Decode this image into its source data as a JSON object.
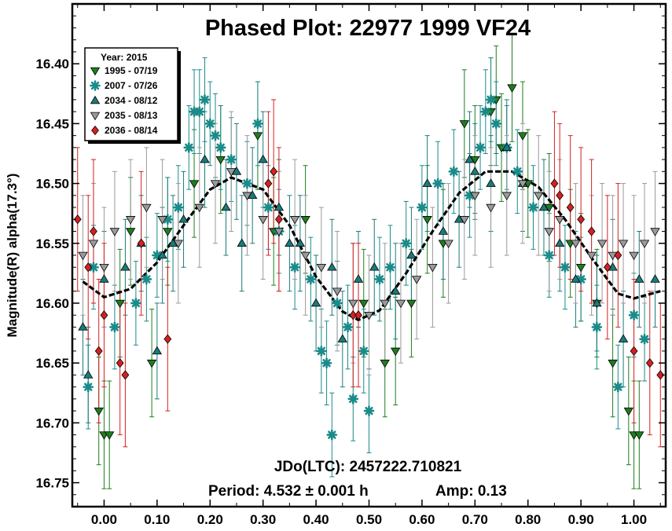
{
  "chart_data": {
    "type": "scatter",
    "title": "Phased Plot: 22977 1999 VF24",
    "xlabel": "",
    "ylabel": "Magnitude(R) alpha(17.3°)",
    "xlim": [
      -0.06,
      1.06
    ],
    "ylim": [
      16.77,
      16.35
    ],
    "y_inverted": true,
    "x_ticks": [
      "0.00",
      "0.10",
      "0.20",
      "0.30",
      "0.40",
      "0.50",
      "0.60",
      "0.70",
      "0.80",
      "0.90",
      "1.00"
    ],
    "x_tick_values": [
      0.0,
      0.1,
      0.2,
      0.3,
      0.4,
      0.5,
      0.6,
      0.7,
      0.8,
      0.9,
      1.0
    ],
    "y_ticks": [
      "16.40",
      "16.45",
      "16.50",
      "16.55",
      "16.60",
      "16.65",
      "16.70",
      "16.75"
    ],
    "y_tick_values": [
      16.4,
      16.45,
      16.5,
      16.55,
      16.6,
      16.65,
      16.7,
      16.75
    ],
    "legend": {
      "title": "Year: 2015",
      "position": "top-left",
      "entries": [
        {
          "label": "1995 - 07/19",
          "marker": "triangle-down",
          "color": "#1e7d1e"
        },
        {
          "label": "2007 - 07/26",
          "marker": "asterisk",
          "color": "#1b8a8a"
        },
        {
          "label": "2034 - 08/12",
          "marker": "triangle-up",
          "color": "#1b7a7a"
        },
        {
          "label": "2035 - 08/13",
          "marker": "triangle-down",
          "color": "#9a9a9a"
        },
        {
          "label": "2036 - 08/14",
          "marker": "diamond",
          "color": "#d62020"
        }
      ]
    },
    "fit_curve": {
      "style": "dashed",
      "color": "#000000",
      "points": [
        [
          -0.04,
          16.582
        ],
        [
          0.0,
          16.595
        ],
        [
          0.05,
          16.588
        ],
        [
          0.1,
          16.566
        ],
        [
          0.15,
          16.535
        ],
        [
          0.2,
          16.505
        ],
        [
          0.24,
          16.495
        ],
        [
          0.3,
          16.505
        ],
        [
          0.35,
          16.535
        ],
        [
          0.4,
          16.578
        ],
        [
          0.45,
          16.607
        ],
        [
          0.48,
          16.614
        ],
        [
          0.52,
          16.606
        ],
        [
          0.57,
          16.575
        ],
        [
          0.62,
          16.54
        ],
        [
          0.67,
          16.508
        ],
        [
          0.72,
          16.49
        ],
        [
          0.77,
          16.49
        ],
        [
          0.82,
          16.503
        ],
        [
          0.87,
          16.53
        ],
        [
          0.92,
          16.562
        ],
        [
          0.97,
          16.592
        ],
        [
          1.0,
          16.596
        ],
        [
          1.05,
          16.59
        ]
      ]
    },
    "series": [
      {
        "name": "1995 - 07/19",
        "points": [
          [
            -0.01,
            16.69
          ],
          [
            0.0,
            16.71
          ],
          [
            0.01,
            16.71
          ],
          [
            0.03,
            16.6
          ],
          [
            0.05,
            16.54
          ],
          [
            0.09,
            16.65
          ],
          [
            0.12,
            16.54
          ],
          [
            0.17,
            16.5
          ],
          [
            0.22,
            16.48
          ],
          [
            0.29,
            16.46
          ],
          [
            0.32,
            16.54
          ],
          [
            0.38,
            16.53
          ],
          [
            0.49,
            16.6
          ],
          [
            0.53,
            16.65
          ],
          [
            0.55,
            16.64
          ],
          [
            0.58,
            16.6
          ],
          [
            0.61,
            16.53
          ],
          [
            0.64,
            16.55
          ],
          [
            0.68,
            16.45
          ],
          [
            0.7,
            16.48
          ],
          [
            0.73,
            16.44
          ],
          [
            0.74,
            16.43
          ],
          [
            0.75,
            16.47
          ],
          [
            0.77,
            16.42
          ],
          [
            0.79,
            16.46
          ],
          [
            0.8,
            16.5
          ],
          [
            0.84,
            16.52
          ],
          [
            0.88,
            16.55
          ],
          [
            0.9,
            16.57
          ],
          [
            0.93,
            16.6
          ],
          [
            0.96,
            16.65
          ],
          [
            0.99,
            16.69
          ],
          [
            1.0,
            16.71
          ],
          [
            1.01,
            16.71
          ]
        ]
      },
      {
        "name": "2007 - 07/26",
        "points": [
          [
            -0.03,
            16.67
          ],
          [
            -0.02,
            16.57
          ],
          [
            0.02,
            16.62
          ],
          [
            0.06,
            16.6
          ],
          [
            0.08,
            16.58
          ],
          [
            0.1,
            16.56
          ],
          [
            0.12,
            16.53
          ],
          [
            0.14,
            16.52
          ],
          [
            0.16,
            16.47
          ],
          [
            0.17,
            16.44
          ],
          [
            0.18,
            16.44
          ],
          [
            0.19,
            16.43
          ],
          [
            0.2,
            16.45
          ],
          [
            0.21,
            16.46
          ],
          [
            0.22,
            16.47
          ],
          [
            0.24,
            16.48
          ],
          [
            0.27,
            16.5
          ],
          [
            0.29,
            16.45
          ],
          [
            0.31,
            16.52
          ],
          [
            0.33,
            16.54
          ],
          [
            0.36,
            16.57
          ],
          [
            0.39,
            16.58
          ],
          [
            0.41,
            16.64
          ],
          [
            0.42,
            16.65
          ],
          [
            0.43,
            16.71
          ],
          [
            0.44,
            16.6
          ],
          [
            0.46,
            16.62
          ],
          [
            0.47,
            16.68
          ],
          [
            0.49,
            16.64
          ],
          [
            0.5,
            16.69
          ],
          [
            0.52,
            16.58
          ],
          [
            0.54,
            16.57
          ],
          [
            0.57,
            16.55
          ],
          [
            0.6,
            16.52
          ],
          [
            0.63,
            16.5
          ],
          [
            0.66,
            16.49
          ],
          [
            0.69,
            16.51
          ],
          [
            0.71,
            16.47
          ],
          [
            0.72,
            16.44
          ],
          [
            0.73,
            16.43
          ],
          [
            0.74,
            16.45
          ],
          [
            0.76,
            16.47
          ],
          [
            0.78,
            16.49
          ],
          [
            0.81,
            16.52
          ],
          [
            0.84,
            16.56
          ],
          [
            0.87,
            16.57
          ],
          [
            0.9,
            16.58
          ],
          [
            0.93,
            16.62
          ],
          [
            0.97,
            16.67
          ],
          [
            1.0,
            16.61
          ],
          [
            1.02,
            16.63
          ]
        ]
      },
      {
        "name": "2034 - 08/12",
        "points": [
          [
            -0.04,
            16.62
          ],
          [
            -0.03,
            16.66
          ],
          [
            0.0,
            16.58
          ],
          [
            0.04,
            16.57
          ],
          [
            0.07,
            16.55
          ],
          [
            0.1,
            16.64
          ],
          [
            0.11,
            16.56
          ],
          [
            0.13,
            16.55
          ],
          [
            0.15,
            16.53
          ],
          [
            0.19,
            16.48
          ],
          [
            0.23,
            16.52
          ],
          [
            0.25,
            16.49
          ],
          [
            0.26,
            16.55
          ],
          [
            0.28,
            16.51
          ],
          [
            0.3,
            16.48
          ],
          [
            0.33,
            16.52
          ],
          [
            0.35,
            16.55
          ],
          [
            0.37,
            16.55
          ],
          [
            0.4,
            16.6
          ],
          [
            0.43,
            16.57
          ],
          [
            0.45,
            16.63
          ],
          [
            0.48,
            16.58
          ],
          [
            0.51,
            16.57
          ],
          [
            0.55,
            16.59
          ],
          [
            0.58,
            16.56
          ],
          [
            0.61,
            16.5
          ],
          [
            0.64,
            16.54
          ],
          [
            0.67,
            16.53
          ],
          [
            0.69,
            16.48
          ],
          [
            0.7,
            16.49
          ],
          [
            0.73,
            16.5
          ],
          [
            0.76,
            16.47
          ],
          [
            0.79,
            16.5
          ],
          [
            0.83,
            16.52
          ],
          [
            0.86,
            16.55
          ],
          [
            0.89,
            16.58
          ],
          [
            0.93,
            16.6
          ],
          [
            0.96,
            16.57
          ],
          [
            0.98,
            16.63
          ],
          [
            1.01,
            16.58
          ],
          [
            1.04,
            16.58
          ]
        ]
      },
      {
        "name": "2035 - 08/13",
        "points": [
          [
            -0.04,
            16.56
          ],
          [
            -0.02,
            16.55
          ],
          [
            0.0,
            16.57
          ],
          [
            0.02,
            16.54
          ],
          [
            0.05,
            16.53
          ],
          [
            0.08,
            16.52
          ],
          [
            0.11,
            16.53
          ],
          [
            0.14,
            16.55
          ],
          [
            0.18,
            16.52
          ],
          [
            0.21,
            16.5
          ],
          [
            0.24,
            16.49
          ],
          [
            0.27,
            16.51
          ],
          [
            0.3,
            16.53
          ],
          [
            0.33,
            16.54
          ],
          [
            0.36,
            16.53
          ],
          [
            0.38,
            16.56
          ],
          [
            0.41,
            16.57
          ],
          [
            0.44,
            16.59
          ],
          [
            0.47,
            16.6
          ],
          [
            0.5,
            16.61
          ],
          [
            0.53,
            16.6
          ],
          [
            0.56,
            16.6
          ],
          [
            0.59,
            16.58
          ],
          [
            0.62,
            16.57
          ],
          [
            0.65,
            16.55
          ],
          [
            0.68,
            16.53
          ],
          [
            0.7,
            16.51
          ],
          [
            0.73,
            16.52
          ],
          [
            0.76,
            16.51
          ],
          [
            0.79,
            16.5
          ],
          [
            0.82,
            16.51
          ],
          [
            0.84,
            16.54
          ],
          [
            0.86,
            16.53
          ],
          [
            0.89,
            16.55
          ],
          [
            0.92,
            16.56
          ],
          [
            0.94,
            16.55
          ],
          [
            0.96,
            16.56
          ],
          [
            0.98,
            16.55
          ],
          [
            1.0,
            16.56
          ],
          [
            1.02,
            16.55
          ],
          [
            1.04,
            16.54
          ]
        ]
      },
      {
        "name": "2036 - 08/14",
        "points": [
          [
            -0.05,
            16.53
          ],
          [
            -0.03,
            16.57
          ],
          [
            -0.02,
            16.54
          ],
          [
            -0.01,
            16.64
          ],
          [
            0.0,
            16.61
          ],
          [
            0.03,
            16.65
          ],
          [
            0.04,
            16.66
          ],
          [
            0.07,
            16.55
          ],
          [
            0.12,
            16.63
          ],
          [
            0.31,
            16.5
          ],
          [
            0.32,
            16.49
          ],
          [
            0.33,
            16.53
          ],
          [
            0.47,
            16.61
          ],
          [
            0.48,
            16.61
          ],
          [
            0.85,
            16.5
          ],
          [
            0.86,
            16.51
          ],
          [
            0.88,
            16.52
          ],
          [
            0.9,
            16.53
          ],
          [
            0.92,
            16.54
          ],
          [
            0.95,
            16.57
          ],
          [
            0.97,
            16.56
          ],
          [
            1.0,
            16.64
          ],
          [
            1.03,
            16.65
          ],
          [
            1.05,
            16.66
          ]
        ]
      }
    ]
  },
  "footer": {
    "jdo": "JDo(LTC): 2457222.710821",
    "period": "Period: 4.532 ± 0.001 h",
    "amp": "Amp: 0.13"
  }
}
